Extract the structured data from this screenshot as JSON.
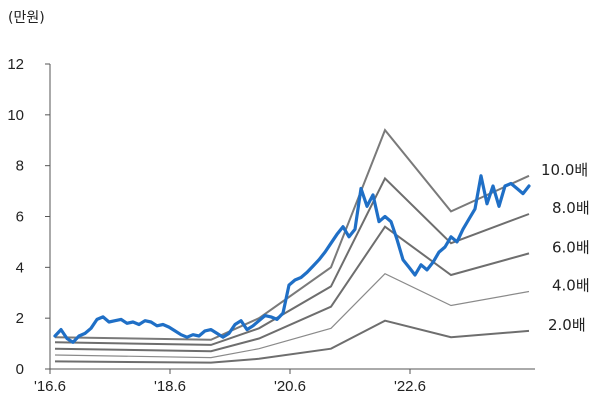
{
  "chart_data": {
    "type": "line",
    "unit_label": "(만원)",
    "y_ticks": [
      "0",
      "2",
      "4",
      "6",
      "8",
      "10",
      "12"
    ],
    "ylim": [
      0,
      12
    ],
    "x_ticks": [
      {
        "label": "'16.6",
        "x": 2016.4167
      },
      {
        "label": "'18.6",
        "x": 2018.4167
      },
      {
        "label": "'20.6",
        "x": 2020.4167
      },
      {
        "label": "'22.6",
        "x": 2022.4167
      }
    ],
    "xlim": [
      2016.4167,
      2024.5
    ],
    "band_x": [
      2016.5,
      2019.1,
      2019.9,
      2021.1,
      2022.0,
      2023.1,
      2024.4
    ],
    "bands": [
      {
        "name": "10.0배",
        "values": [
          1.25,
          1.15,
          2.0,
          4.0,
          9.4,
          6.2,
          7.6
        ]
      },
      {
        "name": "8.0배",
        "values": [
          1.05,
          0.95,
          1.6,
          3.25,
          7.5,
          4.95,
          6.1
        ]
      },
      {
        "name": "6.0배",
        "values": [
          0.8,
          0.7,
          1.2,
          2.45,
          5.6,
          3.7,
          4.55
        ]
      },
      {
        "name": "4.0배",
        "values": [
          0.55,
          0.45,
          0.8,
          1.6,
          3.75,
          2.5,
          3.05
        ]
      },
      {
        "name": "2.0배",
        "values": [
          0.3,
          0.25,
          0.4,
          0.8,
          1.9,
          1.25,
          1.5
        ]
      }
    ],
    "price_series": {
      "color": "#1f6fc6",
      "x": [
        2016.5,
        2016.6,
        2016.7,
        2016.8,
        2016.9,
        2017.0,
        2017.1,
        2017.2,
        2017.3,
        2017.4,
        2017.5,
        2017.6,
        2017.7,
        2017.8,
        2017.9,
        2018.0,
        2018.1,
        2018.2,
        2018.3,
        2018.4,
        2018.5,
        2018.6,
        2018.7,
        2018.8,
        2018.9,
        2019.0,
        2019.1,
        2019.2,
        2019.3,
        2019.4,
        2019.5,
        2019.6,
        2019.7,
        2019.8,
        2019.9,
        2020.0,
        2020.1,
        2020.2,
        2020.3,
        2020.4,
        2020.5,
        2020.6,
        2020.7,
        2020.8,
        2020.9,
        2021.0,
        2021.1,
        2021.2,
        2021.3,
        2021.4,
        2021.5,
        2021.6,
        2021.7,
        2021.8,
        2021.9,
        2022.0,
        2022.1,
        2022.2,
        2022.3,
        2022.4,
        2022.5,
        2022.6,
        2022.7,
        2022.8,
        2022.9,
        2023.0,
        2023.1,
        2023.2,
        2023.3,
        2023.4,
        2023.5,
        2023.6,
        2023.7,
        2023.8,
        2023.9,
        2024.0,
        2024.1,
        2024.2,
        2024.3,
        2024.4
      ],
      "y": [
        1.3,
        1.55,
        1.2,
        1.05,
        1.3,
        1.4,
        1.6,
        1.95,
        2.05,
        1.85,
        1.9,
        1.95,
        1.8,
        1.85,
        1.75,
        1.9,
        1.85,
        1.7,
        1.75,
        1.65,
        1.5,
        1.35,
        1.25,
        1.35,
        1.3,
        1.5,
        1.55,
        1.4,
        1.25,
        1.4,
        1.75,
        1.9,
        1.55,
        1.7,
        1.9,
        2.1,
        2.05,
        1.95,
        2.2,
        3.3,
        3.5,
        3.6,
        3.8,
        4.05,
        4.3,
        4.6,
        4.95,
        5.3,
        5.6,
        5.2,
        5.5,
        7.1,
        6.4,
        6.85,
        5.8,
        6.0,
        5.8,
        5.1,
        4.3,
        4.0,
        3.7,
        4.1,
        3.9,
        4.2,
        4.6,
        4.8,
        5.2,
        5.0,
        5.5,
        5.9,
        6.3,
        7.6,
        6.5,
        7.2,
        6.4,
        7.2,
        7.3,
        7.1,
        6.9,
        7.2
      ]
    }
  }
}
